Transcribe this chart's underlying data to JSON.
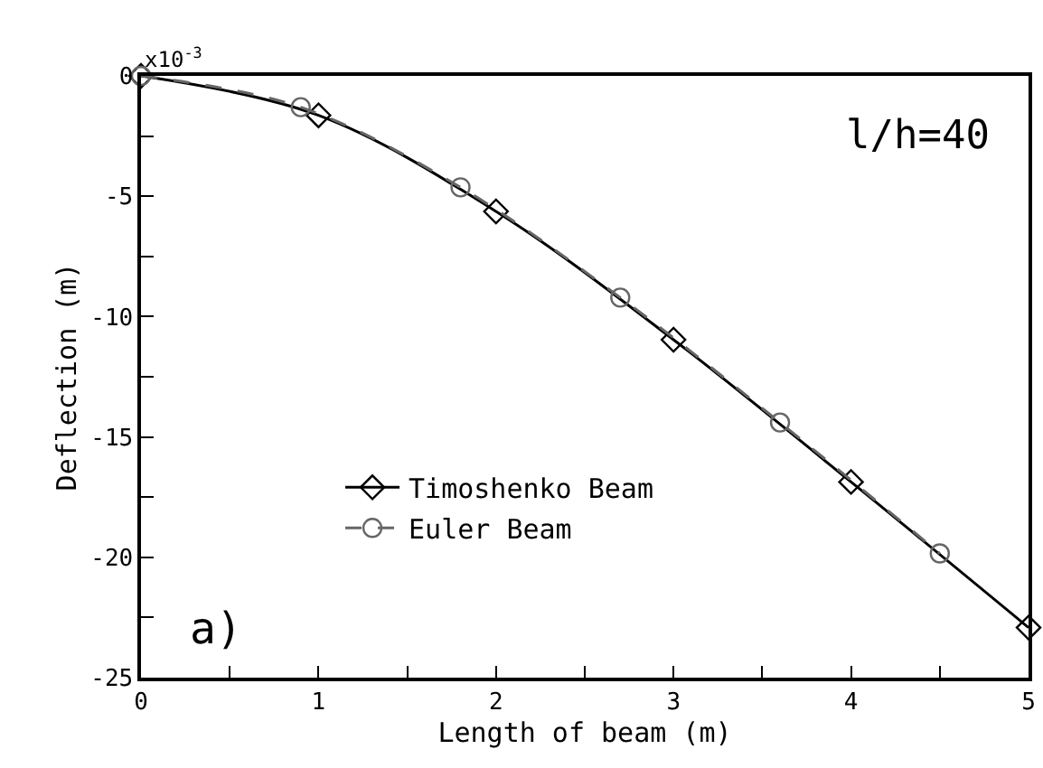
{
  "chart_data": {
    "type": "line",
    "xlabel": "Length of beam (m)",
    "ylabel": "Deflection (m)",
    "annotations": [
      "x10$^{-3}$",
      "l/h=40",
      "a)"
    ],
    "series": [
      {
        "name": "Timoshenko Beam",
        "color": "#000000",
        "marker": "diamond",
        "line_style": "solid",
        "x": [
          0,
          1,
          2,
          3,
          4,
          5
        ],
        "values": [
          0,
          -1.64,
          -5.63,
          -10.96,
          -16.87,
          -22.92
        ]
      },
      {
        "name": "Euler Beam",
        "color": "#666666",
        "marker": "circle",
        "line_style": "dashed",
        "x": [
          0,
          0.9,
          1.8,
          2.7,
          3.6,
          4.5
        ],
        "values": [
          0,
          -1.3,
          -4.63,
          -9.21,
          -14.4,
          -19.84
        ]
      }
    ],
    "xlim": [
      0,
      5
    ],
    "xticks": [
      0,
      {
        "value": 0.5,
        "label": null
      },
      1,
      {
        "value": 1.5,
        "label": null
      },
      2,
      {
        "value": 2.5,
        "label": null
      },
      3,
      {
        "value": 3.5,
        "label": null
      },
      4,
      {
        "value": 4.5,
        "label": null
      },
      5
    ],
    "ylim": [
      -25,
      0
    ],
    "yticks": [
      -25,
      {
        "value": -22.5,
        "label": null
      },
      -20,
      {
        "value": -17.5,
        "label": null
      },
      -15,
      {
        "value": -12.5,
        "label": null
      },
      -10,
      {
        "value": -7.5,
        "label": null
      },
      -5,
      {
        "value": -2.5,
        "label": null
      },
      0
    ],
    "legend": "bottom left"
  }
}
